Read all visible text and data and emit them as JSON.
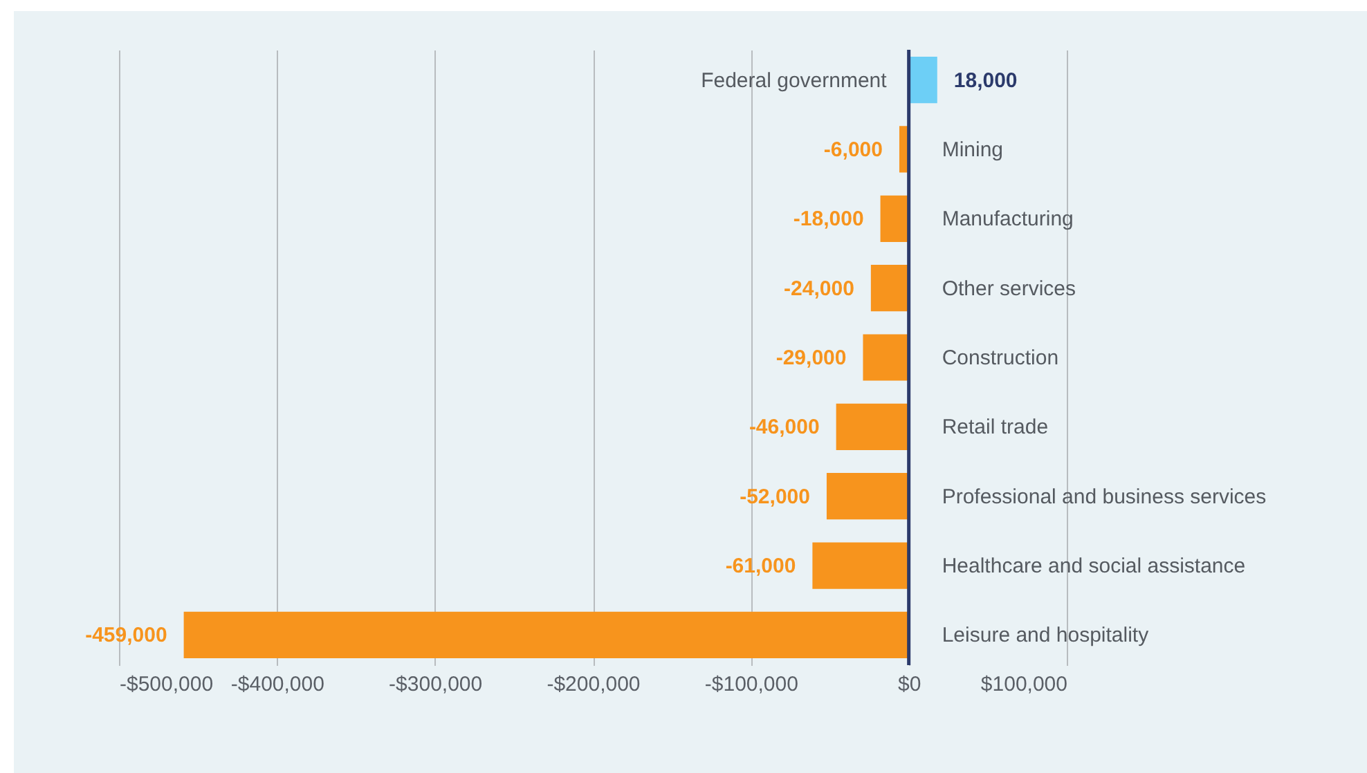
{
  "chart_data": {
    "type": "bar",
    "orientation": "horizontal",
    "categories": [
      "Federal government",
      "Mining",
      "Manufacturing",
      "Other services",
      "Construction",
      "Retail trade",
      "Professional and business services",
      "Healthcare and social assistance",
      "Leisure and hospitality"
    ],
    "values": [
      18000,
      -6000,
      -18000,
      -24000,
      -29000,
      -46000,
      -52000,
      -61000,
      -459000
    ],
    "colors": [
      "#6dcff6",
      "#f7941d",
      "#f7941d",
      "#f7941d",
      "#f7941d",
      "#f7941d",
      "#f7941d",
      "#f7941d",
      "#f7941d"
    ],
    "value_labels": [
      "18,000",
      "-6,000",
      "-18,000",
      "-24,000",
      "-29,000",
      "-46,000",
      "-52,000",
      "-61,000",
      "-459,000"
    ],
    "xlim": [
      -500000,
      100000
    ],
    "xticks": [
      {
        "value": -500000,
        "label": "-$500,000"
      },
      {
        "value": -400000,
        "label": "-$400,000"
      },
      {
        "value": -300000,
        "label": "-$300,000"
      },
      {
        "value": -200000,
        "label": "-$200,000"
      },
      {
        "value": -100000,
        "label": "-$100,000"
      },
      {
        "value": 0,
        "label": "$0"
      },
      {
        "value": 100000,
        "label": "$100,000"
      }
    ],
    "grid": "x",
    "ref_lines": [
      {
        "axis": "x",
        "value": 0,
        "color": "#2b3a6b"
      }
    ]
  }
}
